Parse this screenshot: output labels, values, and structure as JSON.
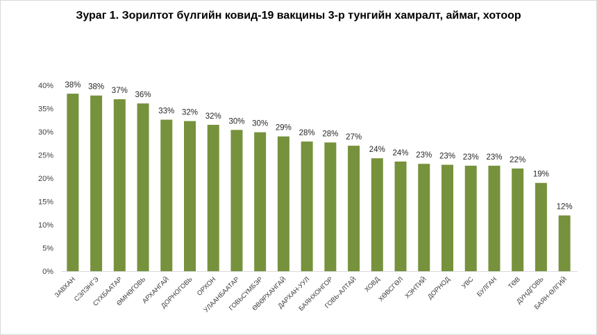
{
  "chart_data": {
    "type": "bar",
    "title": "Зураг 1. Зорилтот бүлгийн ковид-19 вакцины 3-р тунгийн хамралт, аймаг, хотоор",
    "categories": [
      "ЗАВХАН",
      "СЭЛЭНГЭ",
      "СҮХБААТАР",
      "ӨМНӨГОВЬ",
      "АРХАНГАЙ",
      "ДОРНОГОВЬ",
      "ОРХОН",
      "УЛААНБААТАР",
      "ГОВЬСҮМБЭР",
      "ӨВӨРХАНГАЙ",
      "ДАРХАН-УУЛ",
      "БАЯНХОНГОР",
      "ГОВЬ-АЛТАЙ",
      "ХОВД",
      "ХӨВСГӨЛ",
      "ХЭНТИЙ",
      "ДОРНОД",
      "УВС",
      "БУЛГАН",
      "ТӨВ",
      "ДУНДГОВЬ",
      "БАЯН-ӨЛГИЙ"
    ],
    "values": [
      38.2,
      37.8,
      37.0,
      36.1,
      32.6,
      32.3,
      31.5,
      30.4,
      29.9,
      29.0,
      27.9,
      27.7,
      27.0,
      24.3,
      23.6,
      23.1,
      22.9,
      22.7,
      22.7,
      22.1,
      19.0,
      12.0
    ],
    "data_labels": [
      "38%",
      "38%",
      "37%",
      "36%",
      "33%",
      "32%",
      "32%",
      "30%",
      "30%",
      "29%",
      "28%",
      "28%",
      "27%",
      "24%",
      "24%",
      "23%",
      "23%",
      "23%",
      "23%",
      "22%",
      "19%",
      "12%"
    ],
    "y_ticks": [
      "0%",
      "5%",
      "10%",
      "15%",
      "20%",
      "25%",
      "30%",
      "35%",
      "40%"
    ],
    "ylim": [
      0,
      40
    ],
    "grid": false,
    "legend": "none",
    "bar_color": "#76923c"
  }
}
